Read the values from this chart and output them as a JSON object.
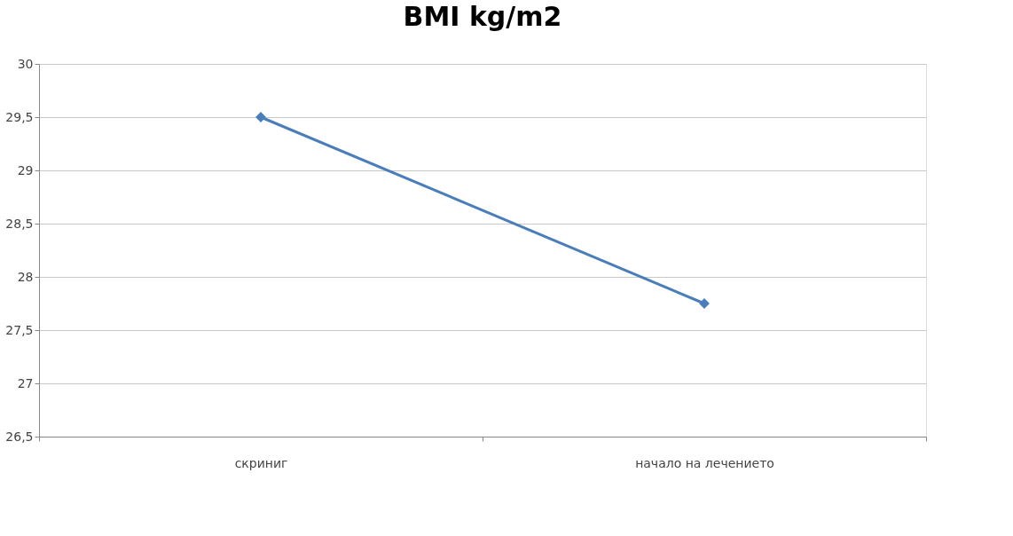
{
  "chart_data": {
    "type": "line",
    "title": "BMI kg/m2",
    "categories": [
      "скриниг",
      "начало на лечението"
    ],
    "series": [
      {
        "color": "#4a7ebb",
        "values": [
          29.5,
          27.75
        ]
      }
    ],
    "ylim": [
      26.5,
      30
    ],
    "yticks": [
      {
        "value": 26.5,
        "label": "26,5"
      },
      27,
      {
        "value": 27.5,
        "label": "27,5"
      },
      28,
      {
        "value": 28.5,
        "label": "28,5"
      },
      29,
      {
        "value": 29.5,
        "label": "29,5"
      },
      30
    ],
    "grid": "y",
    "marker": "diamond",
    "line_style": "solid"
  }
}
